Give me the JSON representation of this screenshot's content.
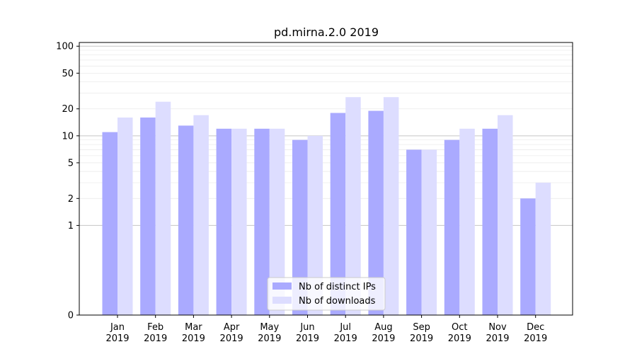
{
  "chart_data": {
    "type": "bar",
    "title": "pd.mirna.2.0 2019",
    "xlabel": "",
    "ylabel": "",
    "yscale": "symlog",
    "ylim": [
      0,
      110
    ],
    "yticks": [
      0,
      1,
      2,
      5,
      10,
      20,
      50,
      100
    ],
    "categories": [
      "Jan\n2019",
      "Feb\n2019",
      "Mar\n2019",
      "Apr\n2019",
      "May\n2019",
      "Jun\n2019",
      "Jul\n2019",
      "Aug\n2019",
      "Sep\n2019",
      "Oct\n2019",
      "Nov\n2019",
      "Dec\n2019"
    ],
    "series": [
      {
        "name": "Nb of distinct IPs",
        "color": "#aaaaff",
        "values": [
          11,
          16,
          13,
          12,
          12,
          9,
          18,
          19,
          7,
          9,
          12,
          2
        ]
      },
      {
        "name": "Nb of downloads",
        "color": "#ddddff",
        "values": [
          16,
          24,
          17,
          12,
          12,
          10,
          27,
          27,
          7,
          12,
          17,
          3
        ]
      }
    ],
    "grid": true,
    "legend_position": "bottom-center"
  }
}
